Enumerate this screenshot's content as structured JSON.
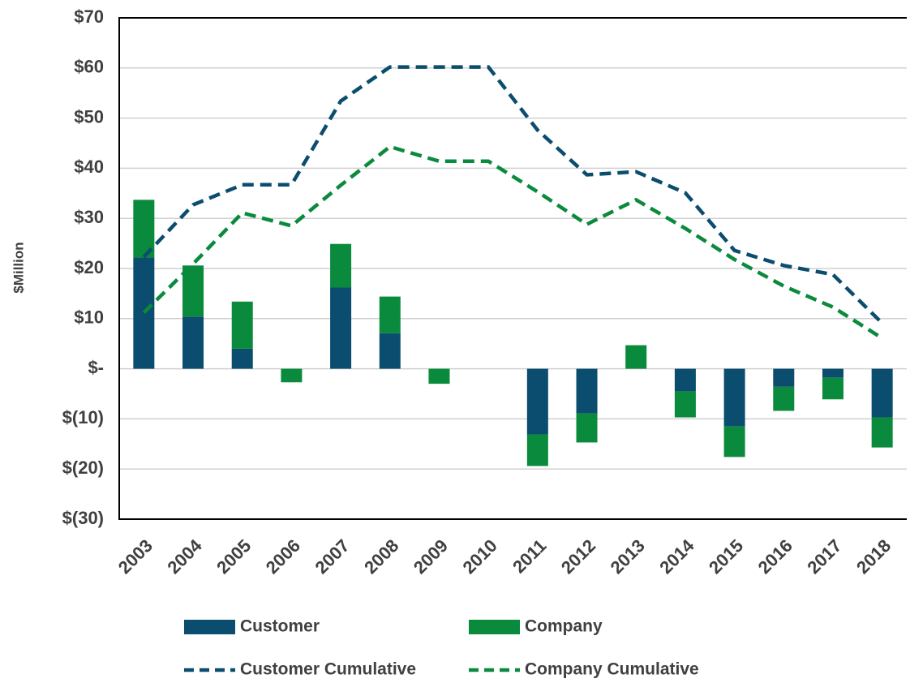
{
  "chart_data": {
    "type": "bar",
    "stacked": true,
    "y_label": "$Million",
    "categories": [
      "2003",
      "2004",
      "2005",
      "2006",
      "2007",
      "2008",
      "2009",
      "2010",
      "2011",
      "2012",
      "2013",
      "2014",
      "2015",
      "2016",
      "2017",
      "2018"
    ],
    "series": [
      {
        "name": "Customer",
        "type": "bar",
        "color": "#0b4d6e",
        "values": [
          22.2,
          10.4,
          4.0,
          0,
          16.2,
          7.1,
          0,
          0,
          -13.1,
          -8.9,
          0,
          -4.5,
          -11.5,
          -3.6,
          -1.8,
          -9.7
        ]
      },
      {
        "name": "Company",
        "type": "bar",
        "color": "#0a8a3c",
        "values": [
          11.5,
          10.2,
          9.4,
          -2.7,
          8.7,
          7.3,
          -3.0,
          0,
          -6.3,
          -5.8,
          4.7,
          -5.2,
          -6.1,
          -4.8,
          -4.3,
          -6.0
        ]
      },
      {
        "name": "Customer Cumulative",
        "type": "line",
        "dashed": true,
        "color": "#0b4d6e",
        "values": [
          22.3,
          32.7,
          36.7,
          36.7,
          53.4,
          60.2,
          60.2,
          60.2,
          47.6,
          38.7,
          39.3,
          35.1,
          23.6,
          20.6,
          18.8,
          9.1
        ]
      },
      {
        "name": "Company Cumulative",
        "type": "line",
        "dashed": true,
        "color": "#0a8a3c",
        "values": [
          11.2,
          20.9,
          31.1,
          28.5,
          36.6,
          44.3,
          41.4,
          41.4,
          35.3,
          28.8,
          33.7,
          28.0,
          21.8,
          16.5,
          12.3,
          6.1
        ]
      }
    ],
    "ylim": [
      -30,
      70
    ],
    "yticks": [
      {
        "value": -30,
        "label": "$(30)"
      },
      {
        "value": -20,
        "label": "$(20)"
      },
      {
        "value": -10,
        "label": "$(10)"
      },
      {
        "value": 0,
        "label": "$-"
      },
      {
        "value": 10,
        "label": "$10"
      },
      {
        "value": 20,
        "label": "$20"
      },
      {
        "value": 30,
        "label": "$30"
      },
      {
        "value": 40,
        "label": "$40"
      },
      {
        "value": 50,
        "label": "$50"
      },
      {
        "value": 60,
        "label": "$60"
      },
      {
        "value": 70,
        "label": "$70"
      }
    ],
    "grid": true,
    "legend": "bottom"
  }
}
